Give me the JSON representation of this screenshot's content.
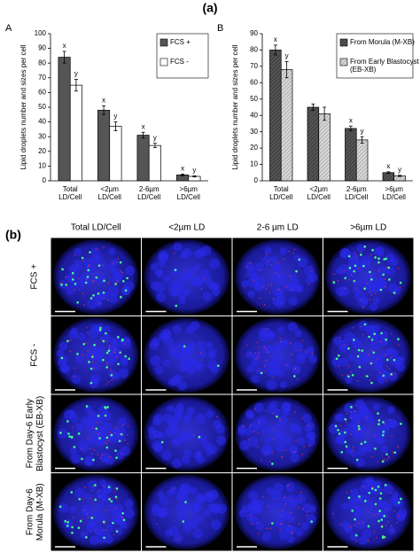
{
  "panel_a_label": "(a)",
  "chart_data": [
    {
      "type": "bar",
      "panel": "A",
      "ylabel": "Lipid droplets number and sizes per cell",
      "categories": [
        "Total\nLD/Cell",
        "<2µm\nLD/Cell",
        "2-6µm\nLD/Cell",
        ">6µm\nLD/Cell"
      ],
      "ylim": [
        0,
        100
      ],
      "yticks": [
        0,
        10,
        20,
        30,
        40,
        50,
        60,
        70,
        80,
        90,
        100
      ],
      "legend": "top-right",
      "hatch": false,
      "series": [
        {
          "name": "FCS +",
          "color": "#555555",
          "values": [
            84,
            48,
            31,
            4
          ],
          "errors": [
            4,
            3,
            2,
            0.6
          ],
          "letters": [
            "x",
            "x",
            "x",
            "x"
          ]
        },
        {
          "name": "FCS -",
          "color": "#ffffff",
          "values": [
            65,
            37,
            24,
            3
          ],
          "errors": [
            4,
            3,
            1.5,
            0.4
          ],
          "letters": [
            "y",
            "y",
            "y",
            "y"
          ]
        }
      ]
    },
    {
      "type": "bar",
      "panel": "B",
      "ylabel": "Lipid droplets number and sizes per cell",
      "categories": [
        "Total\nLD/Cell",
        "<2µm\nLD/Cell",
        "2-6µm\nLD/Cell",
        ">6µm\nLD/Cell"
      ],
      "ylim": [
        0,
        90
      ],
      "yticks": [
        0,
        10,
        20,
        30,
        40,
        50,
        60,
        70,
        80,
        90
      ],
      "legend": "top-right",
      "hatch": true,
      "series": [
        {
          "name": "From Morula (M-XB)",
          "color": "#555555",
          "values": [
            80,
            45,
            32,
            5
          ],
          "errors": [
            3,
            2,
            1.5,
            0.5
          ],
          "letters": [
            "x",
            null,
            "x",
            "x"
          ]
        },
        {
          "name": "From Early Blastocyst\n(EB-XB)",
          "color": "#d8d8d8",
          "values": [
            68,
            41,
            25,
            3
          ],
          "errors": [
            5,
            4,
            2,
            0.4
          ],
          "letters": [
            "y",
            null,
            "y",
            "y"
          ]
        }
      ]
    }
  ],
  "image_grid": {
    "label": "(b)",
    "columns": [
      "Total LD/Cell",
      "<2µm LD",
      "2-6 µm LD",
      ">6µm LD"
    ],
    "rows": [
      "FCS +",
      "FCS -",
      "From Day-6 Early\nBlastocyst (EB-XB)",
      "From Day-6\nMorula (M-XB)"
    ]
  }
}
